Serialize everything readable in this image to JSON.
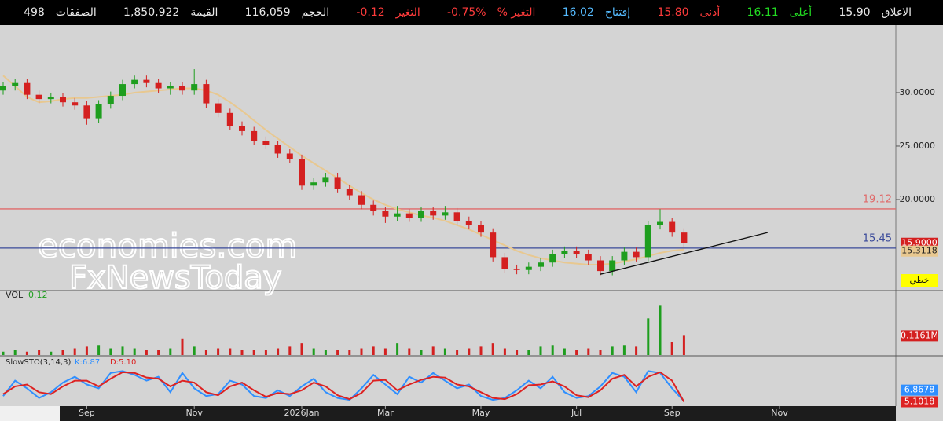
{
  "header": {
    "items": [
      {
        "label": "الاغلاق",
        "value": "15.90",
        "color": "#e8e8e8"
      },
      {
        "label": "أعلى",
        "value": "16.11",
        "color": "#22dd22"
      },
      {
        "label": "أدنى",
        "value": "15.80",
        "color": "#ff3b3b"
      },
      {
        "label": "إفتتاح",
        "value": "16.02",
        "color": "#55bbff"
      },
      {
        "label": "التغير %",
        "value": "-0.75%",
        "color": "#ff3b3b"
      },
      {
        "label": "التغير",
        "value": "-0.12",
        "color": "#ff3b3b"
      },
      {
        "label": "الحجم",
        "value": "116,059",
        "color": "#e8e8e8"
      },
      {
        "label": "القيمة",
        "value": "1,850,922",
        "color": "#e8e8e8"
      },
      {
        "label": "الصفقات",
        "value": "498",
        "color": "#e8e8e8"
      }
    ]
  },
  "chart_data": {
    "type": "candlestick",
    "categories": [
      null,
      null,
      null,
      null,
      null,
      null,
      null,
      "Sep",
      null,
      null,
      null,
      null,
      null,
      null,
      null,
      null,
      "Nov",
      null,
      null,
      null,
      null,
      null,
      null,
      null,
      null,
      "2026Jan",
      null,
      null,
      null,
      null,
      null,
      null,
      "Mar",
      null,
      null,
      null,
      null,
      null,
      null,
      null,
      "May",
      null,
      null,
      null,
      null,
      null,
      null,
      null,
      "Jul",
      null,
      null,
      null,
      null,
      null,
      null,
      null,
      "Sep",
      null,
      null,
      null,
      null,
      null,
      null,
      null,
      null,
      "Nov",
      null,
      null,
      null,
      null,
      null,
      null,
      null,
      null
    ],
    "open": [
      30.2,
      30.6,
      30.9,
      29.8,
      29.4,
      29.6,
      29.1,
      28.8,
      27.6,
      28.9,
      29.7,
      30.8,
      31.2,
      30.9,
      30.4,
      30.6,
      30.2,
      30.8,
      29.0,
      28.1,
      26.9,
      26.4,
      25.5,
      25.1,
      24.3,
      23.8,
      21.3,
      21.6,
      22.1,
      21.0,
      20.4,
      19.5,
      18.9,
      18.4,
      18.7,
      18.3,
      18.9,
      18.5,
      18.8,
      18.0,
      17.6,
      16.9,
      14.6,
      13.5,
      13.4,
      13.7,
      14.1,
      14.9,
      15.2,
      14.9,
      14.3,
      13.3,
      14.3,
      15.1,
      14.6,
      17.6,
      17.9,
      16.9,
      null,
      null,
      null,
      null,
      null,
      null,
      null,
      null,
      null,
      null,
      null,
      null,
      null,
      null,
      null,
      null
    ],
    "high": [
      31.0,
      31.3,
      31.3,
      30.2,
      30.0,
      30.0,
      29.5,
      29.2,
      29.3,
      30.1,
      31.2,
      31.6,
      31.6,
      31.3,
      31.0,
      31.0,
      32.2,
      31.2,
      29.4,
      28.5,
      27.3,
      26.8,
      25.9,
      25.5,
      24.7,
      24.2,
      22.0,
      22.5,
      22.5,
      21.4,
      20.8,
      19.9,
      19.3,
      19.4,
      19.1,
      19.3,
      19.3,
      19.4,
      19.2,
      18.4,
      18.0,
      17.3,
      15.0,
      13.9,
      14.1,
      14.5,
      15.3,
      15.6,
      15.6,
      15.3,
      14.7,
      14.7,
      15.5,
      15.5,
      18.0,
      19.1,
      18.3,
      17.3,
      null,
      null,
      null,
      null,
      null,
      null,
      null,
      null,
      null,
      null,
      null,
      null,
      null,
      null,
      null,
      null
    ],
    "low": [
      29.8,
      30.2,
      29.4,
      29.0,
      29.0,
      28.7,
      28.4,
      27.0,
      27.2,
      28.5,
      29.3,
      30.4,
      30.5,
      30.0,
      29.8,
      29.8,
      29.8,
      28.6,
      27.7,
      26.5,
      26.0,
      25.1,
      24.7,
      23.9,
      23.4,
      20.9,
      20.9,
      21.2,
      20.6,
      20.0,
      19.1,
      18.5,
      17.8,
      18.0,
      17.9,
      17.9,
      18.1,
      18.1,
      17.6,
      17.2,
      16.5,
      14.2,
      13.1,
      13.0,
      13.0,
      13.3,
      13.7,
      14.5,
      14.5,
      13.9,
      12.9,
      12.9,
      13.9,
      14.2,
      14.2,
      17.2,
      16.5,
      15.5,
      null,
      null,
      null,
      null,
      null,
      null,
      null,
      null,
      null,
      null,
      null,
      null,
      null,
      null,
      null,
      null
    ],
    "close": [
      30.6,
      30.9,
      29.8,
      29.4,
      29.6,
      29.1,
      28.8,
      27.6,
      28.9,
      29.7,
      30.8,
      31.2,
      30.9,
      30.4,
      30.6,
      30.2,
      30.8,
      29.0,
      28.1,
      26.9,
      26.4,
      25.5,
      25.1,
      24.3,
      23.8,
      21.3,
      21.6,
      22.1,
      21.0,
      20.4,
      19.5,
      18.9,
      18.4,
      18.7,
      18.3,
      18.9,
      18.5,
      18.8,
      18.0,
      17.6,
      16.9,
      14.6,
      13.5,
      13.4,
      13.7,
      14.1,
      14.9,
      15.2,
      14.9,
      14.3,
      13.3,
      14.3,
      15.1,
      14.6,
      17.6,
      17.9,
      16.9,
      15.9,
      null,
      null,
      null,
      null,
      null,
      null,
      null,
      null,
      null,
      null,
      null,
      null,
      null,
      null,
      null,
      null
    ],
    "up_color": "#1e9e1e",
    "down_color": "#d42020",
    "ma": {
      "color": "#e8c890",
      "values": [
        31.6,
        30.6,
        29.6,
        29.1,
        29.2,
        29.4,
        29.5,
        29.5,
        29.6,
        29.7,
        29.8,
        30.0,
        30.1,
        30.2,
        30.3,
        30.4,
        30.4,
        30.2,
        29.8,
        29.1,
        28.3,
        27.4,
        26.5,
        25.7,
        24.9,
        24.1,
        23.4,
        22.7,
        22.0,
        21.3,
        20.6,
        20.0,
        19.5,
        19.1,
        18.8,
        18.5,
        18.3,
        18.0,
        17.6,
        17.2,
        16.7,
        16.2,
        15.7,
        15.2,
        14.8,
        14.5,
        14.3,
        14.1,
        14.0,
        13.9,
        13.9,
        14.0,
        14.2,
        14.4,
        14.7,
        15.0,
        15.2,
        15.3118,
        null,
        null,
        null,
        null,
        null,
        null,
        null,
        null,
        null,
        null,
        null,
        null,
        null,
        null,
        null,
        null
      ]
    },
    "ylim": [
      11.47,
      36.32
    ],
    "yticks": [
      {
        "value": 20,
        "label": "20.0000"
      },
      {
        "value": 25,
        "label": "25.0000"
      },
      {
        "value": 30,
        "label": "30.0000"
      }
    ],
    "levels": [
      {
        "value": 19.12,
        "color": "#e06a6a"
      },
      {
        "value": 15.45,
        "color": "#3a4a9a"
      }
    ],
    "trendline": {
      "x": [
        50,
        64
      ],
      "y": [
        13.0,
        16.9
      ]
    },
    "price_tag": {
      "value": 15.9,
      "label": "15.9000"
    },
    "scale_label": "خطي",
    "watermark": [
      "economies.com",
      "FxNewsToday"
    ],
    "volume": {
      "title": "VOL",
      "last": 0.12,
      "ylim": [
        0,
        0.33
      ],
      "tag": {
        "value": 0.1161,
        "label": "0.1161M"
      },
      "values": [
        0.02,
        0.03,
        0.02,
        0.03,
        0.02,
        0.03,
        0.04,
        0.05,
        0.06,
        0.04,
        0.05,
        0.04,
        0.03,
        0.03,
        0.04,
        0.1,
        0.05,
        0.03,
        0.04,
        0.04,
        0.03,
        0.03,
        0.03,
        0.04,
        0.05,
        0.07,
        0.04,
        0.03,
        0.03,
        0.03,
        0.04,
        0.05,
        0.04,
        0.07,
        0.04,
        0.03,
        0.05,
        0.04,
        0.03,
        0.04,
        0.05,
        0.07,
        0.04,
        0.03,
        0.03,
        0.05,
        0.06,
        0.04,
        0.03,
        0.04,
        0.03,
        0.05,
        0.06,
        0.05,
        0.22,
        0.3,
        0.08,
        0.1161,
        null,
        null,
        null,
        null,
        null,
        null,
        null,
        null,
        null,
        null,
        null,
        null,
        null,
        null,
        null,
        null
      ]
    },
    "stochastic": {
      "title": "SlowSTO(3,14,3)",
      "k_label": "K:6.87",
      "d_label": "D:5.10",
      "ylim": [
        0,
        100
      ],
      "k": {
        "color": "#2f8fff",
        "values": [
          20,
          60,
          40,
          15,
          30,
          55,
          70,
          50,
          40,
          80,
          85,
          75,
          60,
          70,
          30,
          80,
          40,
          20,
          25,
          60,
          50,
          20,
          15,
          35,
          20,
          45,
          65,
          30,
          15,
          10,
          40,
          75,
          50,
          25,
          70,
          55,
          80,
          60,
          40,
          50,
          20,
          10,
          15,
          35,
          60,
          40,
          70,
          30,
          15,
          20,
          45,
          80,
          70,
          30,
          85,
          80,
          40,
          6.8678,
          null,
          null,
          null,
          null,
          null,
          null,
          null,
          null,
          null,
          null,
          null,
          null,
          null,
          null,
          null,
          null
        ]
      },
      "d": {
        "color": "#dd2222",
        "values": [
          25,
          45,
          50,
          30,
          25,
          45,
          60,
          60,
          45,
          65,
          82,
          80,
          68,
          65,
          45,
          60,
          55,
          30,
          22,
          45,
          55,
          35,
          18,
          28,
          25,
          35,
          55,
          45,
          22,
          12,
          28,
          60,
          62,
          35,
          50,
          62,
          70,
          68,
          50,
          45,
          30,
          15,
          12,
          25,
          48,
          50,
          58,
          45,
          22,
          17,
          35,
          65,
          75,
          45,
          70,
          82,
          60,
          5.1018,
          null,
          null,
          null,
          null,
          null,
          null,
          null,
          null,
          null,
          null,
          null,
          null,
          null,
          null,
          null,
          null
        ]
      }
    }
  }
}
